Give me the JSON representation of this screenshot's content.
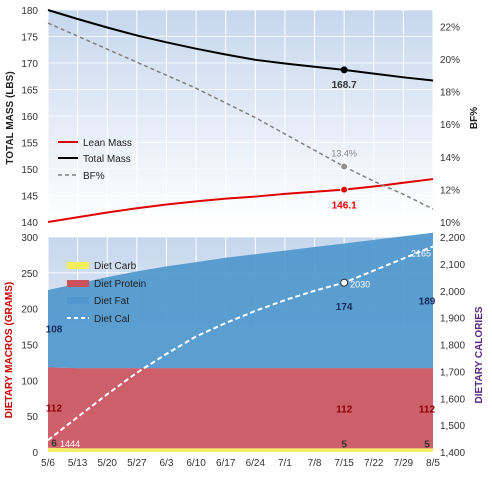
{
  "colors": {
    "lean": "#e00000",
    "total": "#000000",
    "bf": "#808080",
    "carb": "#f2ef5a",
    "protein": "#c9525d",
    "fat": "#4f97cc",
    "cal": "#ffffff",
    "macros_axis": "#cc0000",
    "cal_axis": "#5a2a82",
    "label_dark": "#1a2a5a",
    "plot_bg_top": "#c6d7ed",
    "plot_bg_bottom": "#ffffff"
  },
  "chart_data": [
    {
      "type": "line",
      "x": [
        "5/6",
        "5/13",
        "5/20",
        "5/27",
        "6/3",
        "6/10",
        "6/17",
        "6/24",
        "7/1",
        "7/8",
        "7/15",
        "7/22",
        "7/29",
        "8/5"
      ],
      "ylabel": "TOTAL MASS (LBS)",
      "ylim": [
        140,
        180
      ],
      "yticks": [
        "140",
        "145",
        "150",
        "155",
        "160",
        "165",
        "170",
        "175",
        "180"
      ],
      "y2label": "BF%",
      "y2lim": [
        10,
        23
      ],
      "y2ticks": [
        "10%",
        "12%",
        "14%",
        "16%",
        "18%",
        "20%",
        "22%"
      ],
      "legend_position": "bottom-left",
      "series": [
        {
          "name": "Lean Mass",
          "axis": "left",
          "values": [
            140.0,
            140.9,
            141.8,
            142.6,
            143.3,
            143.9,
            144.4,
            144.8,
            145.3,
            145.7,
            146.1,
            146.7,
            147.4,
            148.1
          ]
        },
        {
          "name": "Total Mass",
          "axis": "left",
          "values": [
            180.0,
            178.3,
            176.7,
            175.2,
            173.9,
            172.7,
            171.6,
            170.6,
            169.9,
            169.3,
            168.7,
            168.0,
            167.3,
            166.7
          ]
        },
        {
          "name": "BF%",
          "axis": "right",
          "values": [
            22.2,
            21.4,
            20.6,
            19.8,
            19.0,
            18.2,
            17.3,
            16.4,
            15.4,
            14.4,
            13.4,
            12.5,
            11.7,
            10.8
          ]
        }
      ],
      "annotations": [
        {
          "x": "7/15",
          "series": "Total Mass",
          "label": "168.7"
        },
        {
          "x": "7/15",
          "series": "BF%",
          "label": "13.4%"
        },
        {
          "x": "7/15",
          "series": "Lean Mass",
          "label": "146.1"
        }
      ]
    },
    {
      "type": "area",
      "x": [
        "5/6",
        "5/13",
        "5/20",
        "5/27",
        "6/3",
        "6/10",
        "6/17",
        "6/24",
        "7/1",
        "7/8",
        "7/15",
        "7/22",
        "7/29",
        "8/5"
      ],
      "ylabel": "DIETARY MACROS (GRAMS)",
      "ylim": [
        0,
        300
      ],
      "yticks": [
        "0",
        "50",
        "100",
        "150",
        "200",
        "250",
        "300"
      ],
      "y2label": "DIETARY CALORIES",
      "y2lim": [
        1400,
        2200
      ],
      "y2ticks": [
        "1,400",
        "1,500",
        "1,600",
        "1,700",
        "1,800",
        "1,900",
        "2,000",
        "2,100",
        "2,200"
      ],
      "legend_position": "top-left",
      "series": [
        {
          "name": "Diet Carb",
          "axis": "left",
          "stacked": true,
          "values": [
            6,
            5,
            5,
            5,
            5,
            5,
            5,
            5,
            5,
            5,
            5,
            5,
            5,
            5
          ]
        },
        {
          "name": "Diet Protein",
          "axis": "left",
          "stacked": true,
          "values": [
            112,
            112,
            112,
            112,
            112,
            112,
            112,
            112,
            112,
            112,
            112,
            112,
            112,
            112
          ]
        },
        {
          "name": "Diet Fat",
          "axis": "left",
          "stacked": true,
          "values": [
            108,
            118,
            127,
            135,
            142,
            148,
            154,
            159,
            164,
            169,
            174,
            179,
            184,
            189
          ]
        },
        {
          "name": "Diet Cal",
          "axis": "right",
          "values": [
            1444,
            1530,
            1615,
            1695,
            1765,
            1830,
            1880,
            1925,
            1965,
            2000,
            2030,
            2075,
            2120,
            2165
          ]
        }
      ],
      "annotations": [
        {
          "x": "5/6",
          "series": "Diet Carb",
          "label": "6"
        },
        {
          "x": "7/15",
          "series": "Diet Carb",
          "label": "5"
        },
        {
          "x": "8/5",
          "series": "Diet Carb",
          "label": "5"
        },
        {
          "x": "5/6",
          "series": "Diet Protein",
          "label": "112"
        },
        {
          "x": "7/15",
          "series": "Diet Protein",
          "label": "112"
        },
        {
          "x": "8/5",
          "series": "Diet Protein",
          "label": "112"
        },
        {
          "x": "5/6",
          "series": "Diet Fat",
          "label": "108"
        },
        {
          "x": "7/15",
          "series": "Diet Fat",
          "label": "174"
        },
        {
          "x": "8/5",
          "series": "Diet Fat",
          "label": "189"
        },
        {
          "x": "5/6",
          "series": "Diet Cal",
          "label": "1444"
        },
        {
          "x": "7/15",
          "series": "Diet Cal",
          "label": "2030"
        },
        {
          "x": "8/5",
          "series": "Diet Cal",
          "label": "2165"
        }
      ]
    }
  ]
}
